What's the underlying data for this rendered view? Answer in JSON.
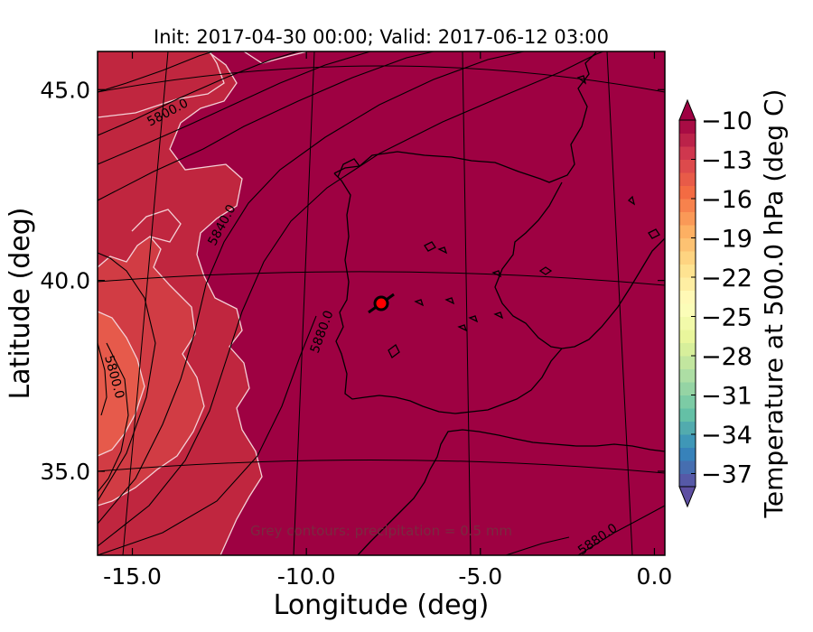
{
  "chart_data": {
    "type": "heatmap",
    "title": "Init: 2017-04-30 00:00; Valid: 2017-06-12 03:00",
    "xlabel": "Longitude (deg)",
    "ylabel": "Latitude (deg)",
    "xlim": [
      -16.0,
      0.3
    ],
    "ylim": [
      32.8,
      46.0
    ],
    "x_ticks": [
      -15.0,
      -10.0,
      -5.0,
      0.0
    ],
    "x_tick_labels": [
      "-15.0",
      "-10.0",
      "-5.0",
      "0.0"
    ],
    "y_ticks": [
      35.0,
      40.0,
      45.0
    ],
    "y_tick_labels": [
      "35.0",
      "40.0",
      "45.0"
    ],
    "colorbar": {
      "label": "Temperature at 500.0 hPa (deg C)",
      "min": -38,
      "max": -10,
      "ticks": [
        -10,
        -13,
        -16,
        -19,
        -22,
        -25,
        -28,
        -31,
        -34,
        -37
      ],
      "tick_labels": [
        "−10",
        "−13",
        "−16",
        "−19",
        "−22",
        "−25",
        "−28",
        "−31",
        "−34",
        "−37"
      ],
      "extend": "both",
      "colormap": "Spectral_r"
    },
    "background_color": "#9e0142",
    "temperature_regions": [
      {
        "level": -10.5,
        "color": "#c0263f"
      },
      {
        "level": -11.5,
        "color": "#d13c44"
      },
      {
        "level": -12.5,
        "color": "#e65a4b"
      }
    ],
    "height_contours": {
      "label_values": [
        "5800.0",
        "5840.0",
        "5880.0",
        "5800.0",
        "5880.0"
      ],
      "color": "#000000"
    },
    "marker": {
      "lon": -7.6,
      "lat": 39.35,
      "color": "#ff0000"
    },
    "annotation": "Grey contours: precipitation = 0.5 mm"
  }
}
